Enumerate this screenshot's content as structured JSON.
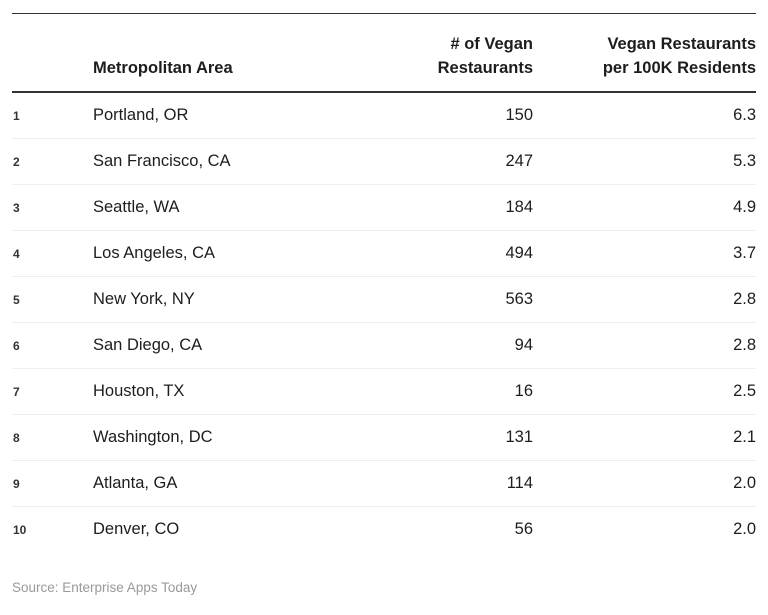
{
  "table": {
    "header": {
      "rank": "",
      "metro": "Metropolitan Area",
      "vegan_count_line1": "# of Vegan",
      "vegan_count_line2": "Restaurants",
      "per_100k_line1": "Vegan Restaurants",
      "per_100k_line2": "per 100K Residents"
    },
    "rows": [
      {
        "rank": "1",
        "metro": "Portland, OR",
        "vegan_restaurants": "150",
        "per_100k": "6.3"
      },
      {
        "rank": "2",
        "metro": "San Francisco, CA",
        "vegan_restaurants": "247",
        "per_100k": "5.3"
      },
      {
        "rank": "3",
        "metro": "Seattle, WA",
        "vegan_restaurants": "184",
        "per_100k": "4.9"
      },
      {
        "rank": "4",
        "metro": "Los Angeles, CA",
        "vegan_restaurants": "494",
        "per_100k": "3.7"
      },
      {
        "rank": "5",
        "metro": "New York, NY",
        "vegan_restaurants": "563",
        "per_100k": "2.8"
      },
      {
        "rank": "6",
        "metro": "San Diego, CA",
        "vegan_restaurants": "94",
        "per_100k": "2.8"
      },
      {
        "rank": "7",
        "metro": "Houston, TX",
        "vegan_restaurants": "16",
        "per_100k": "2.5"
      },
      {
        "rank": "8",
        "metro": "Washington, DC",
        "vegan_restaurants": "131",
        "per_100k": "2.1"
      },
      {
        "rank": "9",
        "metro": "Atlanta, GA",
        "vegan_restaurants": "114",
        "per_100k": "2.0"
      },
      {
        "rank": "10",
        "metro": "Denver, CO",
        "vegan_restaurants": "56",
        "per_100k": "2.0"
      }
    ]
  },
  "footer": {
    "source": "Source: Enterprise Apps Today"
  },
  "colors": {
    "header_border": "#333333",
    "row_divider": "#eeeeee",
    "text": "#1d1d1d",
    "source_text": "#999999",
    "background": "#ffffff"
  },
  "chart_data": {
    "type": "table",
    "title": "",
    "columns": [
      "Rank",
      "Metropolitan Area",
      "# of Vegan Restaurants",
      "Vegan Restaurants per 100K Residents"
    ],
    "rows": [
      [
        1,
        "Portland, OR",
        150,
        6.3
      ],
      [
        2,
        "San Francisco, CA",
        247,
        5.3
      ],
      [
        3,
        "Seattle, WA",
        184,
        4.9
      ],
      [
        4,
        "Los Angeles, CA",
        494,
        3.7
      ],
      [
        5,
        "New York, NY",
        563,
        2.8
      ],
      [
        6,
        "San Diego, CA",
        94,
        2.8
      ],
      [
        7,
        "Houston, TX",
        16,
        2.5
      ],
      [
        8,
        "Washington, DC",
        131,
        2.1
      ],
      [
        9,
        "Atlanta, GA",
        114,
        2.0
      ],
      [
        10,
        "Denver, CO",
        56,
        2.0
      ]
    ],
    "source": "Source: Enterprise Apps Today"
  }
}
